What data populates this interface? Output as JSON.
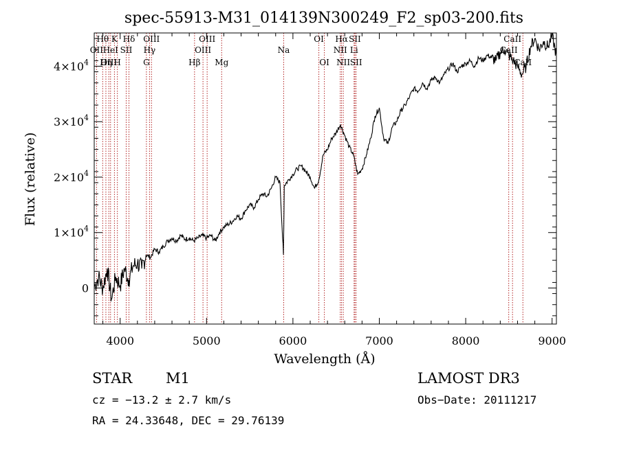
{
  "chart_data": {
    "type": "line",
    "title": "spec-55913-M31_014139N300249_F2_sp03-200.fits",
    "xlabel": "Wavelength (Å)",
    "ylabel": "Flux (relative)",
    "xlim": [
      3700,
      9050
    ],
    "ylim": [
      -6500,
      46000
    ],
    "x_ticks": [
      4000,
      5000,
      6000,
      7000,
      8000,
      9000
    ],
    "x_tick_labels": [
      "4000",
      "5000",
      "6000",
      "7000",
      "8000",
      "9000"
    ],
    "y_ticks": [
      0,
      10000,
      20000,
      30000,
      40000
    ],
    "y_tick_labels": [
      {
        "mantissa": "0",
        "exponent": ""
      },
      {
        "mantissa": "1×10",
        "exponent": "4"
      },
      {
        "mantissa": "2×10",
        "exponent": "4"
      },
      {
        "mantissa": "3×10",
        "exponent": "4"
      },
      {
        "mantissa": "4×10",
        "exponent": "4"
      }
    ],
    "grid": false,
    "series": [
      {
        "name": "flux",
        "color": "#000000",
        "x": [
          3700,
          3750,
          3800,
          3850,
          3900,
          3950,
          4000,
          4050,
          4100,
          4150,
          4200,
          4250,
          4300,
          4350,
          4400,
          4450,
          4500,
          4550,
          4600,
          4650,
          4700,
          4750,
          4800,
          4850,
          4900,
          4950,
          5000,
          5050,
          5100,
          5150,
          5200,
          5250,
          5300,
          5350,
          5400,
          5450,
          5500,
          5550,
          5600,
          5650,
          5700,
          5750,
          5800,
          5850,
          5890,
          5900,
          5950,
          6000,
          6050,
          6100,
          6150,
          6200,
          6250,
          6300,
          6350,
          6400,
          6450,
          6500,
          6550,
          6600,
          6650,
          6700,
          6750,
          6800,
          6850,
          6900,
          6950,
          7000,
          7050,
          7100,
          7150,
          7200,
          7250,
          7300,
          7350,
          7400,
          7450,
          7500,
          7550,
          7600,
          7650,
          7700,
          7750,
          7800,
          7850,
          7900,
          7950,
          8000,
          8050,
          8100,
          8150,
          8200,
          8250,
          8300,
          8350,
          8400,
          8450,
          8500,
          8550,
          8600,
          8650,
          8700,
          8750,
          8800,
          8850,
          8900,
          8950,
          9000,
          9050
        ],
        "values": [
          200,
          2000,
          0,
          3500,
          -2000,
          2000,
          500,
          3500,
          1500,
          4000,
          4500,
          3500,
          6000,
          5500,
          7000,
          6500,
          7500,
          8500,
          9000,
          8500,
          9500,
          8800,
          9000,
          8500,
          9000,
          9500,
          9000,
          9500,
          8500,
          10000,
          11000,
          11500,
          12000,
          13000,
          12500,
          14000,
          15000,
          14500,
          16000,
          17000,
          16500,
          18000,
          20000,
          19000,
          6000,
          18500,
          19500,
          20500,
          21500,
          22000,
          21000,
          20000,
          18000,
          19500,
          24000,
          25000,
          27000,
          28000,
          29500,
          27500,
          25500,
          24000,
          20500,
          21500,
          24000,
          27000,
          31000,
          32500,
          27000,
          26000,
          29000,
          30000,
          32000,
          33000,
          34500,
          36000,
          35500,
          37000,
          36000,
          37500,
          38000,
          37000,
          38500,
          39500,
          40500,
          39000,
          40000,
          40500,
          41000,
          40000,
          41500,
          41000,
          42000,
          41500,
          41000,
          42500,
          43000,
          42000,
          41000,
          40000,
          38500,
          40000,
          43500,
          45000,
          43000,
          44500,
          43500,
          45500,
          42000
        ]
      }
    ],
    "line_markers": [
      {
        "label": "Hθ",
        "wavelength": 3798,
        "row": 1,
        "dx": 0
      },
      {
        "label": "OII",
        "wavelength": 3727,
        "row": 2,
        "dx": 0
      },
      {
        "label": "OIII",
        "wavelength": 3869,
        "row": 3,
        "dx": 0
      },
      {
        "label": "K",
        "wavelength": 3934,
        "row": 1,
        "dx": 0
      },
      {
        "label": "HeI",
        "wavelength": 3889,
        "row": 2,
        "dx": 0
      },
      {
        "label": "Hη",
        "wavelength": 3835,
        "row": 3,
        "dx": 0
      },
      {
        "label": "Hδ",
        "wavelength": 4102,
        "row": 1,
        "dx": 0
      },
      {
        "label": "SII",
        "wavelength": 4070,
        "row": 2,
        "dx": 0
      },
      {
        "label": "H",
        "wavelength": 3968,
        "row": 3,
        "dx": 0
      },
      {
        "label": "OIII",
        "wavelength": 4363,
        "row": 1,
        "dx": 0
      },
      {
        "label": "Hγ",
        "wavelength": 4340,
        "row": 2,
        "dx": 0
      },
      {
        "label": "G",
        "wavelength": 4304,
        "row": 3,
        "dx": 0
      },
      {
        "label": "OIII",
        "wavelength": 5007,
        "row": 1,
        "dx": 0
      },
      {
        "label": "OIII",
        "wavelength": 4959,
        "row": 2,
        "dx": 0
      },
      {
        "label": "Hβ",
        "wavelength": 4861,
        "row": 3,
        "dx": 0
      },
      {
        "label": "Mg",
        "wavelength": 5175,
        "row": 3,
        "dx": 0
      },
      {
        "label": "Na",
        "wavelength": 5893,
        "row": 2,
        "dx": 0
      },
      {
        "label": "OI",
        "wavelength": 6300,
        "row": 1,
        "dx": 0
      },
      {
        "label": "OI",
        "wavelength": 6364,
        "row": 3,
        "dx": 0
      },
      {
        "label": "Hα",
        "wavelength": 6563,
        "row": 1,
        "dx": 0
      },
      {
        "label": "NII",
        "wavelength": 6548,
        "row": 2,
        "dx": 0
      },
      {
        "label": "NII",
        "wavelength": 6583,
        "row": 3,
        "dx": 0
      },
      {
        "label": "SII",
        "wavelength": 6717,
        "row": 1,
        "dx": 0
      },
      {
        "label": "Li",
        "wavelength": 6708,
        "row": 2,
        "dx": 0
      },
      {
        "label": "SII",
        "wavelength": 6731,
        "row": 3,
        "dx": 0
      },
      {
        "label": "CaII",
        "wavelength": 8542,
        "row": 1,
        "dx": 0
      },
      {
        "label": "CaII",
        "wavelength": 8498,
        "row": 2,
        "dx": 0
      },
      {
        "label": "CaII",
        "wavelength": 8662,
        "row": 3,
        "dx": 0
      }
    ],
    "annotations": {
      "object_class": "STAR",
      "subclass": "M1",
      "redshift": "cz = −13.2 ± 2.7 km/s",
      "coordinates": "RA =  24.33648, DEC =  29.76139",
      "survey": "LAMOST DR3",
      "obs_date": "Obs−Date: 20111217"
    }
  }
}
